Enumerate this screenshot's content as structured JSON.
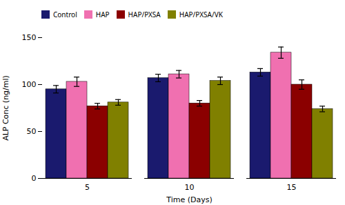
{
  "chart_data": {
    "type": "bar",
    "categories": [
      "5",
      "10",
      "15"
    ],
    "series": [
      {
        "name": "Control",
        "color": "#1a1a6e",
        "values": [
          95,
          107,
          113
        ],
        "errors": [
          4,
          4,
          4
        ]
      },
      {
        "name": "HAP",
        "color": "#f070b0",
        "values": [
          103,
          111,
          134
        ],
        "errors": [
          5,
          4,
          6
        ]
      },
      {
        "name": "HAP/PXSA",
        "color": "#8b0000",
        "values": [
          77,
          80,
          100
        ],
        "errors": [
          3,
          3,
          5
        ]
      },
      {
        "name": "HAP/PXSA/VK",
        "color": "#808000",
        "values": [
          81,
          104,
          74
        ],
        "errors": [
          3,
          4,
          3
        ]
      }
    ],
    "xlabel": "Time (Days)",
    "ylabel": "ALP Conc (ng/ml)",
    "ylim": [
      0,
      150
    ],
    "yticks": [
      0,
      50,
      100,
      150
    ],
    "grid": false,
    "legend": "upper left"
  }
}
